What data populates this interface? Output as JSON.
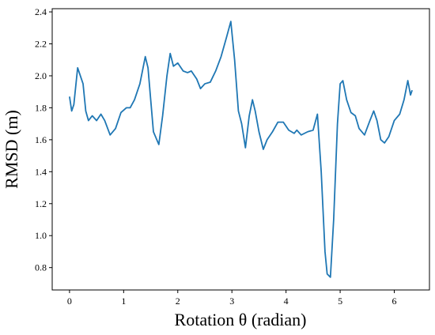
{
  "chart_data": {
    "type": "line",
    "xlabel": "Rotation θ (radian)",
    "ylabel": "RMSD (m)",
    "color": "#1f77b4",
    "x": [
      0,
      0.04,
      0.08,
      0.15,
      0.2,
      0.25,
      0.3,
      0.35,
      0.42,
      0.5,
      0.58,
      0.65,
      0.75,
      0.85,
      0.95,
      1.05,
      1.12,
      1.2,
      1.3,
      1.4,
      1.45,
      1.5,
      1.55,
      1.65,
      1.72,
      1.8,
      1.86,
      1.92,
      2.0,
      2.1,
      2.18,
      2.25,
      2.35,
      2.42,
      2.5,
      2.6,
      2.7,
      2.8,
      2.9,
      2.98,
      3.05,
      3.12,
      3.18,
      3.25,
      3.32,
      3.38,
      3.43,
      3.5,
      3.58,
      3.65,
      3.75,
      3.85,
      3.95,
      4.05,
      4.15,
      4.2,
      4.28,
      4.4,
      4.5,
      4.58,
      4.65,
      4.72,
      4.76,
      4.82,
      4.88,
      4.95,
      5.0,
      5.05,
      5.12,
      5.2,
      5.28,
      5.35,
      5.45,
      5.55,
      5.62,
      5.68,
      5.75,
      5.82,
      5.9,
      6.0,
      6.1,
      6.18,
      6.25,
      6.3,
      6.33
    ],
    "values": [
      1.87,
      1.78,
      1.82,
      2.05,
      2.0,
      1.95,
      1.78,
      1.72,
      1.75,
      1.72,
      1.76,
      1.72,
      1.63,
      1.67,
      1.77,
      1.8,
      1.8,
      1.85,
      1.95,
      2.12,
      2.05,
      1.85,
      1.65,
      1.57,
      1.75,
      2.0,
      2.14,
      2.06,
      2.08,
      2.03,
      2.02,
      2.03,
      1.98,
      1.92,
      1.95,
      1.96,
      2.03,
      2.12,
      2.24,
      2.34,
      2.1,
      1.78,
      1.7,
      1.55,
      1.75,
      1.85,
      1.78,
      1.65,
      1.54,
      1.6,
      1.65,
      1.71,
      1.71,
      1.66,
      1.64,
      1.66,
      1.63,
      1.65,
      1.66,
      1.76,
      1.4,
      0.9,
      0.76,
      0.74,
      1.1,
      1.7,
      1.95,
      1.97,
      1.85,
      1.77,
      1.75,
      1.67,
      1.63,
      1.72,
      1.78,
      1.72,
      1.6,
      1.58,
      1.62,
      1.72,
      1.76,
      1.85,
      1.97,
      1.88,
      1.91
    ],
    "xlim": [
      -0.32,
      6.65
    ],
    "ylim": [
      0.66,
      2.42
    ],
    "xticks": [
      0,
      1,
      2,
      3,
      4,
      5,
      6
    ],
    "yticks": [
      0.8,
      {
        "value": 1,
        "label": "1.0"
      },
      1.2,
      1.4,
      1.6,
      1.8,
      {
        "value": 2,
        "label": "2.0"
      },
      2.2,
      2.4
    ]
  }
}
